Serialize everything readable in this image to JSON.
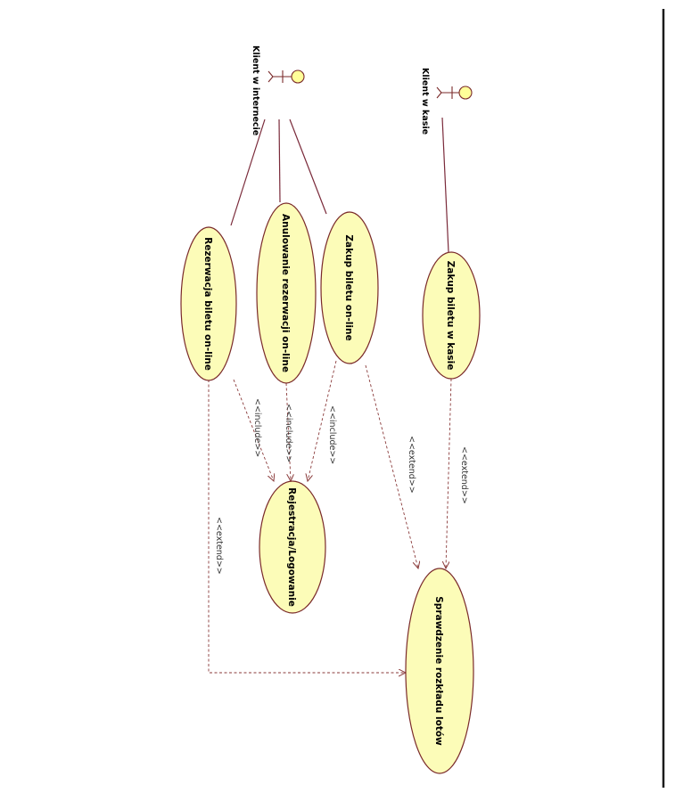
{
  "actors": {
    "online": {
      "label": "Klient w internecie",
      "icon": "stick-figure-actor-icon"
    },
    "cashier": {
      "label": "Klient w kasie",
      "icon": "stick-figure-actor-icon"
    }
  },
  "use_cases": {
    "rezerwacja": "Rezerwacja biletu on-line",
    "anulowanie": "Anulowanie rezerwacji on-line",
    "zakup_online": "Zakup biletu on-line",
    "zakup_kasa": "Zakup biletu w kasie",
    "rejestracja": "Rejestracja/Logowanie",
    "sprawdzenie": "Sprawdzenie rozkładu lotów"
  },
  "relations": {
    "include_rezerwacja": "<<include>>",
    "include_anulowanie": "<<include>>",
    "include_zakup": "<<include>>",
    "extend_zakup_online": "<<extend>>",
    "extend_zakup_kasa": "<<extend>>",
    "extend_rezerwacja": "<<extend>>"
  },
  "colors": {
    "use_case_fill": "#fcfcb8",
    "actor_head_fill": "#ffff99",
    "line": "#7a2a3a"
  }
}
